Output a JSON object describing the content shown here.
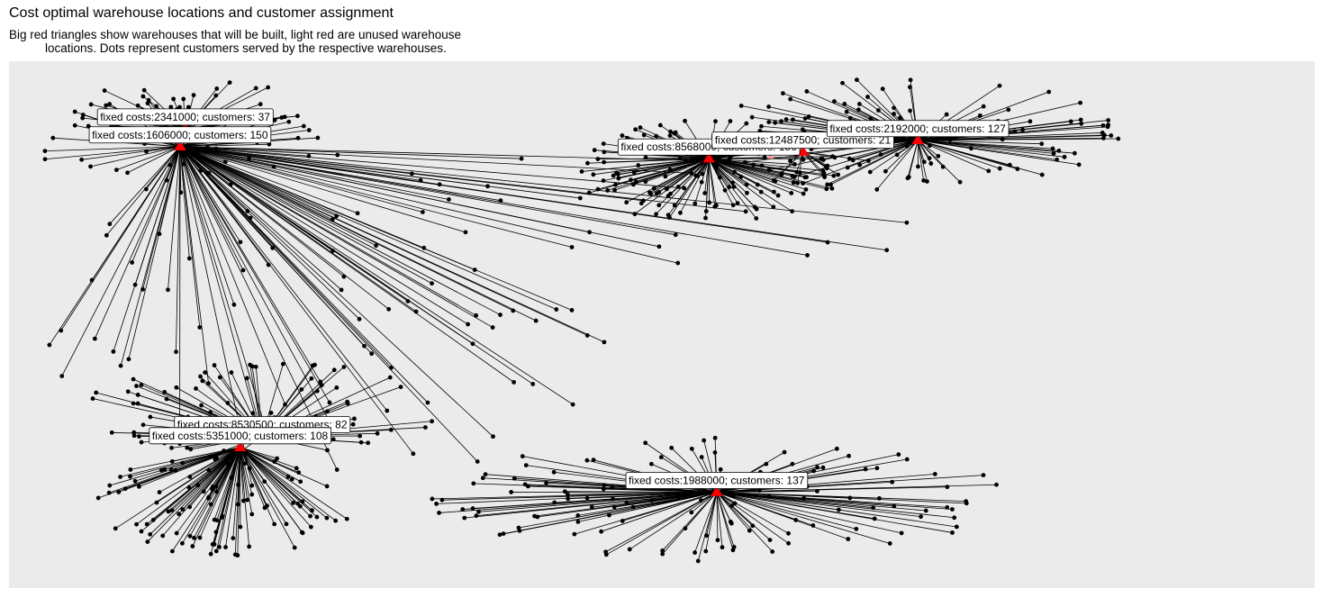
{
  "title": "Cost optimal warehouse locations and customer assignment",
  "subtitle_line1": "Big red triangles show warehouses that will be built, light red are unused warehouse",
  "subtitle_line2": "locations. Dots represent customers served by the respective warehouses.",
  "colors": {
    "panel_background": "#ebebeb",
    "built_warehouse": "#ff0000",
    "unused_warehouse": "#ff9999",
    "customer": "#000000",
    "link": "#000000",
    "label_background": "#ffffff"
  },
  "chart_data": {
    "type": "scatter",
    "xlim": [
      0,
      100
    ],
    "ylim": [
      0,
      100
    ],
    "grid": false,
    "axes_shown": false,
    "warehouses_built": [
      {
        "id": "w1",
        "x": 13.1,
        "y": 83.8,
        "fixed_costs": 1606000,
        "customers": 150,
        "label": "fixed costs:1606000; customers: 150"
      },
      {
        "id": "w2",
        "x": 13.5,
        "y": 87.2,
        "fixed_costs": 2341000,
        "customers": 37,
        "label": "fixed costs:2341000; customers: 37"
      },
      {
        "id": "w3",
        "x": 53.6,
        "y": 81.5,
        "fixed_costs": 8568000,
        "customers": 156,
        "label": "fixed costs:8568000; customers: 156"
      },
      {
        "id": "w4",
        "x": 60.8,
        "y": 82.8,
        "fixed_costs": 12487500,
        "customers": 21,
        "label": "fixed costs:12487500; customers: 21"
      },
      {
        "id": "w5",
        "x": 69.6,
        "y": 85.0,
        "fixed_costs": 2192000,
        "customers": 127,
        "label": "fixed costs:2192000; customers: 127"
      },
      {
        "id": "w6",
        "x": 19.4,
        "y": 28.8,
        "fixed_costs": 8530500,
        "customers": 82,
        "label": "fixed costs:8530500; customers: 82"
      },
      {
        "id": "w7",
        "x": 17.7,
        "y": 26.7,
        "fixed_costs": 5351000,
        "customers": 108,
        "label": "fixed costs:5351000; customers: 108"
      },
      {
        "id": "w8",
        "x": 54.2,
        "y": 18.2,
        "fixed_costs": 1988000,
        "customers": 137,
        "label": "fixed costs:1988000; customers: 137"
      }
    ],
    "warehouses_unused": [
      {
        "x": 58.3,
        "y": 81.9
      }
    ],
    "customer_generation": {
      "w1": [
        {
          "count": 52,
          "cx": 13.1,
          "cy": 83.8,
          "rx": 13,
          "ry": 9,
          "y_min": 0.5,
          "seed": 11
        },
        {
          "count": 65,
          "cx": 24.0,
          "cy": 50.0,
          "rx": 22,
          "ry": 33,
          "y_min": 0.5,
          "seed": 12
        },
        {
          "count": 33,
          "cx": 38.0,
          "cy": 68.0,
          "rx": 33,
          "ry": 20,
          "y_min": 0.5,
          "seed": 13
        }
      ],
      "w2": [
        {
          "count": 37,
          "cx": 14.0,
          "cy": 91.0,
          "rx": 9,
          "ry": 6,
          "y_min": 0.5,
          "seed": 21
        }
      ],
      "w3": [
        {
          "count": 156,
          "cx": 53.6,
          "cy": 79.0,
          "rx": 10,
          "ry": 10,
          "y_min": 0.5,
          "seed": 31
        }
      ],
      "w4": [
        {
          "count": 21,
          "cx": 61.0,
          "cy": 81.5,
          "rx": 5,
          "ry": 5,
          "y_min": 0.5,
          "seed": 41
        }
      ],
      "w5": [
        {
          "count": 127,
          "cx": 69.6,
          "cy": 86.0,
          "rx": 16,
          "ry": 11,
          "y_min": 0.5,
          "seed": 51
        }
      ],
      "w6": [
        {
          "count": 82,
          "cx": 19.4,
          "cy": 34.0,
          "rx": 14,
          "ry": 9,
          "y_min": 0.5,
          "seed": 61
        }
      ],
      "w7": [
        {
          "count": 108,
          "cx": 16.5,
          "cy": 16.0,
          "rx": 10,
          "ry": 10,
          "y_min": 0.5,
          "seed": 71
        }
      ],
      "w8": [
        {
          "count": 137,
          "cx": 54.2,
          "cy": 17.0,
          "rx": 22,
          "ry": 12,
          "y_min": 0.5,
          "seed": 81
        }
      ]
    }
  }
}
